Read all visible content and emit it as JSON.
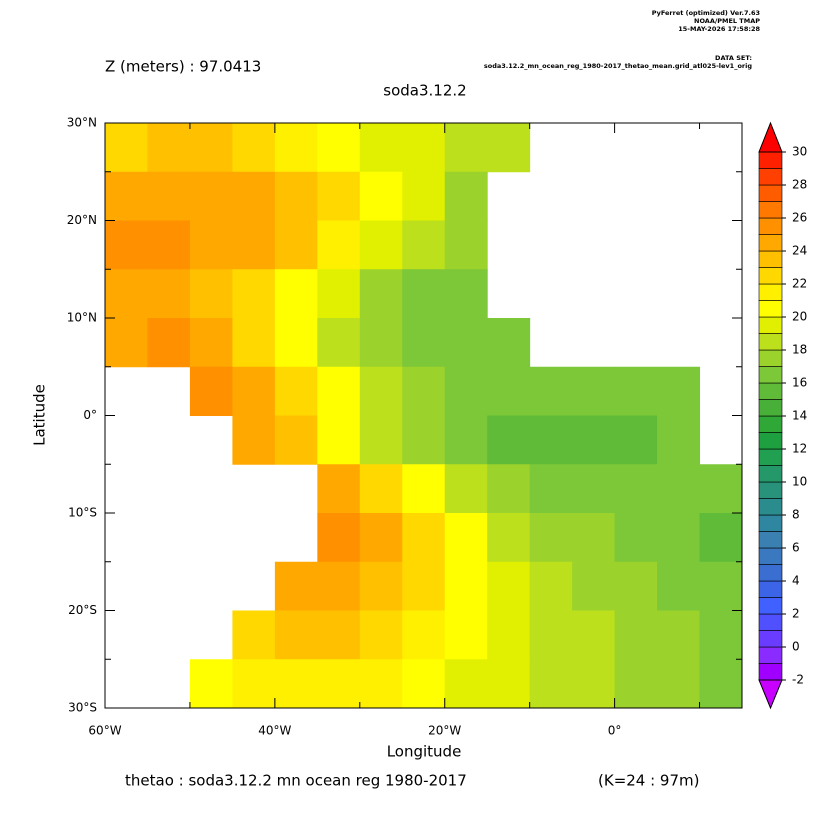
{
  "header": {
    "program": "PyFerret (optimized) Ver.7.63",
    "org": "NOAA/PMEL TMAP",
    "date": "15-MAY-2026 17:58:28",
    "dataset_label": "DATA SET:",
    "dataset": "soda3.12.2_mn_ocean_reg_1980-2017_thetao_mean.grid_atl025-lev1_orig"
  },
  "chart_data": {
    "type": "heatmap",
    "depth_label": "Z (meters) : 97.0413",
    "title": "soda3.12.2",
    "x_label": "Longitude",
    "y_label": "Latitude",
    "footer": "thetao : soda3.12.2 mn ocean reg 1980-2017",
    "footer_level": "(K=24 : 97m)",
    "xlim": [
      -60,
      15
    ],
    "ylim": [
      -30,
      30
    ],
    "xticks": [
      {
        "value": -60,
        "label": "60°W"
      },
      {
        "value": -40,
        "label": "40°W"
      },
      {
        "value": -20,
        "label": "20°W"
      },
      {
        "value": 0,
        "label": "0°"
      }
    ],
    "xminor": [
      -50,
      -30,
      -10,
      10
    ],
    "yticks": [
      {
        "value": 30,
        "label": "30°N"
      },
      {
        "value": 20,
        "label": "20°N"
      },
      {
        "value": 10,
        "label": "10°N"
      },
      {
        "value": 0,
        "label": "0°"
      },
      {
        "value": -10,
        "label": "10°S"
      },
      {
        "value": -20,
        "label": "20°S"
      },
      {
        "value": -30,
        "label": "30°S"
      }
    ],
    "yminor": [
      25,
      15,
      5,
      -5,
      -15,
      -25
    ],
    "x": [
      -57.5,
      -52.5,
      -47.5,
      -42.5,
      -37.5,
      -32.5,
      -27.5,
      -22.5,
      -17.5,
      -12.5,
      -7.5,
      -2.5,
      2.5,
      7.5,
      12.5
    ],
    "y": [
      27.5,
      22.5,
      17.5,
      12.5,
      7.5,
      2.5,
      -2.5,
      -7.5,
      -12.5,
      -17.5,
      -22.5,
      -27.5
    ],
    "values": [
      [
        22,
        23,
        23,
        22,
        21,
        20,
        19,
        19,
        18,
        18,
        null,
        null,
        null,
        null,
        null
      ],
      [
        24,
        24,
        24,
        24,
        23,
        22,
        20,
        19,
        17,
        null,
        null,
        null,
        null,
        null,
        null
      ],
      [
        25,
        25,
        24,
        24,
        23,
        21,
        19,
        18,
        17,
        null,
        null,
        null,
        null,
        null,
        null
      ],
      [
        24,
        24,
        23,
        22,
        20,
        19,
        17,
        16,
        16,
        null,
        null,
        null,
        null,
        null,
        null
      ],
      [
        24,
        25,
        24,
        22,
        20,
        18,
        17,
        16,
        16,
        16,
        null,
        null,
        null,
        null,
        null
      ],
      [
        null,
        null,
        25,
        24,
        22,
        20,
        18,
        17,
        16,
        16,
        16,
        16,
        16,
        16,
        null
      ],
      [
        null,
        null,
        null,
        24,
        23,
        20,
        18,
        17,
        16,
        15,
        15,
        15,
        15,
        16,
        null
      ],
      [
        null,
        null,
        null,
        null,
        null,
        24,
        22,
        20,
        18,
        17,
        16,
        16,
        16,
        16,
        16
      ],
      [
        null,
        null,
        null,
        null,
        null,
        25,
        24,
        22,
        20,
        18,
        17,
        17,
        16,
        16,
        15
      ],
      [
        null,
        null,
        null,
        null,
        24,
        24,
        23,
        22,
        20,
        19,
        18,
        17,
        17,
        16,
        16
      ],
      [
        null,
        null,
        null,
        22,
        23,
        23,
        22,
        21,
        20,
        19,
        18,
        18,
        17,
        17,
        16
      ],
      [
        null,
        null,
        20,
        21,
        21,
        21,
        21,
        20,
        19,
        19,
        18,
        18,
        17,
        17,
        16
      ]
    ],
    "colorbar": {
      "ticks": [
        -2,
        0,
        2,
        4,
        6,
        8,
        10,
        12,
        14,
        16,
        18,
        20,
        22,
        24,
        26,
        28,
        30
      ],
      "under_color": "#c800ff",
      "over_color": "#ff0000",
      "colors": [
        "#a000ff",
        "#8a2cff",
        "#6a3cff",
        "#5050ff",
        "#4060ff",
        "#3c64e6",
        "#3a6ed0",
        "#3a78c0",
        "#3a80b0",
        "#2e86a0",
        "#2a8c8c",
        "#28927a",
        "#249868",
        "#20a050",
        "#1ea040",
        "#30a838",
        "#48b038",
        "#60bc38",
        "#7cc838",
        "#9cd22c",
        "#bce01c",
        "#e0f000",
        "#ffff00",
        "#fff000",
        "#ffd800",
        "#ffc000",
        "#ffa800",
        "#ff9000",
        "#ff7800",
        "#ff5c00",
        "#ff4000",
        "#ff2000"
      ]
    }
  }
}
